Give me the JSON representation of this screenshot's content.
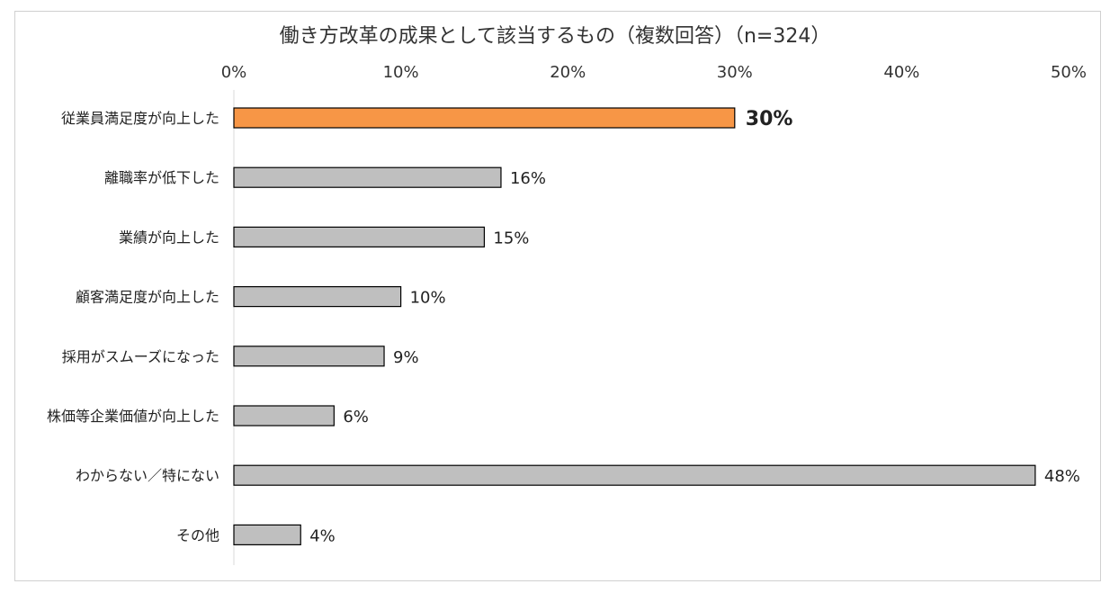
{
  "chart_data": {
    "type": "bar",
    "orientation": "horizontal",
    "title": "働き方改革の成果として該当するもの（複数回答）（n=324）",
    "xlim": [
      0,
      50
    ],
    "ticks": [
      0,
      10,
      20,
      30,
      40,
      50
    ],
    "tick_labels": [
      "0%",
      "10%",
      "20%",
      "30%",
      "40%",
      "50%"
    ],
    "axis_position": "top",
    "categories": [
      "従業員満足度が向上した",
      "離職率が低下した",
      "業績が向上した",
      "顧客満足度が向上した",
      "採用がスムーズになった",
      "株価等企業価値が向上した",
      "わからない／特にない",
      "その他"
    ],
    "values": [
      30,
      16,
      15,
      10,
      9,
      6,
      48,
      4
    ],
    "value_labels": [
      "30%",
      "16%",
      "15%",
      "10%",
      "9%",
      "6%",
      "48%",
      "4%"
    ],
    "highlight_index": 0,
    "colors": {
      "highlight": "#F79646",
      "highlight_label": "#E07E28",
      "default": "#BFBFBF",
      "stroke": "#000000",
      "axis": "#D9D9D9"
    },
    "grid": false,
    "legend": "none"
  }
}
